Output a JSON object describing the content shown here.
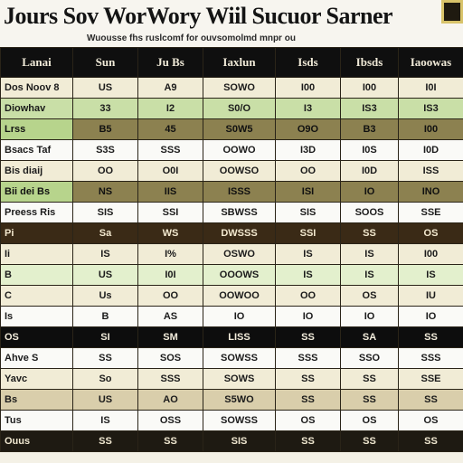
{
  "header": {
    "title": "Jours Sov WorWory Wiil Sucuor Sarner",
    "subtitle": "Wuousse fhs ruslcomf for ouvsomolmd mnpr ou"
  },
  "table": {
    "columns": [
      "Lanai",
      "Sun",
      "Ju Bs",
      "Iaxlun",
      "Isds",
      "Ibsds",
      "Iaoowas"
    ],
    "rows": [
      {
        "style": "cream",
        "cells": [
          "Dos Noov 8",
          "US",
          "A9",
          "SOWO",
          "I00",
          "I00",
          "I0I"
        ]
      },
      {
        "style": "green",
        "cells": [
          "Diowhav",
          "33",
          "I2",
          "S0/O",
          "I3",
          "IS3",
          "IS3"
        ]
      },
      {
        "style": "olive",
        "cells": [
          "Lrss",
          "B5",
          "45",
          "S0W5",
          "O9O",
          "B3",
          "I00"
        ]
      },
      {
        "style": "white",
        "cells": [
          "Bsacs Taf",
          "S3S",
          "SSS",
          "OOWO",
          "I3D",
          "I0S",
          "I0D"
        ]
      },
      {
        "style": "cream",
        "cells": [
          "Bis diaij",
          "OO",
          "O0I",
          "OOWSO",
          "OO",
          "I0D",
          "ISS"
        ]
      },
      {
        "style": "olive",
        "cells": [
          "Bii dei Bs",
          "NS",
          "IIS",
          "ISSS",
          "ISI",
          "IO",
          "INO"
        ]
      },
      {
        "style": "white",
        "cells": [
          "Preess Ris",
          "SIS",
          "SSI",
          "SBWSS",
          "SIS",
          "SOOS",
          "SSE"
        ]
      },
      {
        "style": "brown",
        "cells": [
          "Pi",
          "Sa",
          "WS",
          "DWSSS",
          "SSI",
          "SS",
          "OS"
        ]
      },
      {
        "style": "cream",
        "cells": [
          "Ii",
          "IS",
          "I%",
          "OSWO",
          "IS",
          "IS",
          "I00"
        ]
      },
      {
        "style": "lightgreen",
        "cells": [
          "B",
          "US",
          "I0I",
          "OOOWS",
          "IS",
          "IS",
          "IS"
        ]
      },
      {
        "style": "cream",
        "cells": [
          "C",
          "Us",
          "OO",
          "OOWOO",
          "OO",
          "OS",
          "IU"
        ]
      },
      {
        "style": "white",
        "cells": [
          "Is",
          "B",
          "AS",
          "IO",
          "IO",
          "IO",
          "IO"
        ]
      },
      {
        "style": "black",
        "cells": [
          "OS",
          "SI",
          "SM",
          "LISS",
          "SS",
          "SA",
          "SS"
        ]
      },
      {
        "style": "white",
        "cells": [
          "Ahve S",
          "SS",
          "SOS",
          "SOWSS",
          "SSS",
          "SSO",
          "SSS"
        ]
      },
      {
        "style": "cream",
        "cells": [
          "Yavc",
          "So",
          "SSS",
          "SOWS",
          "SS",
          "SS",
          "SSE"
        ]
      },
      {
        "style": "tan",
        "cells": [
          "Bs",
          "US",
          "AO",
          "S5WO",
          "SS",
          "SS",
          "SS"
        ]
      },
      {
        "style": "white",
        "cells": [
          "Tus",
          "IS",
          "OSS",
          "SOWSS",
          "OS",
          "OS",
          "OS"
        ]
      },
      {
        "style": "dark",
        "cells": [
          "Ouus",
          "SS",
          "SS",
          "SIS",
          "SS",
          "SS",
          "SS"
        ]
      }
    ]
  }
}
